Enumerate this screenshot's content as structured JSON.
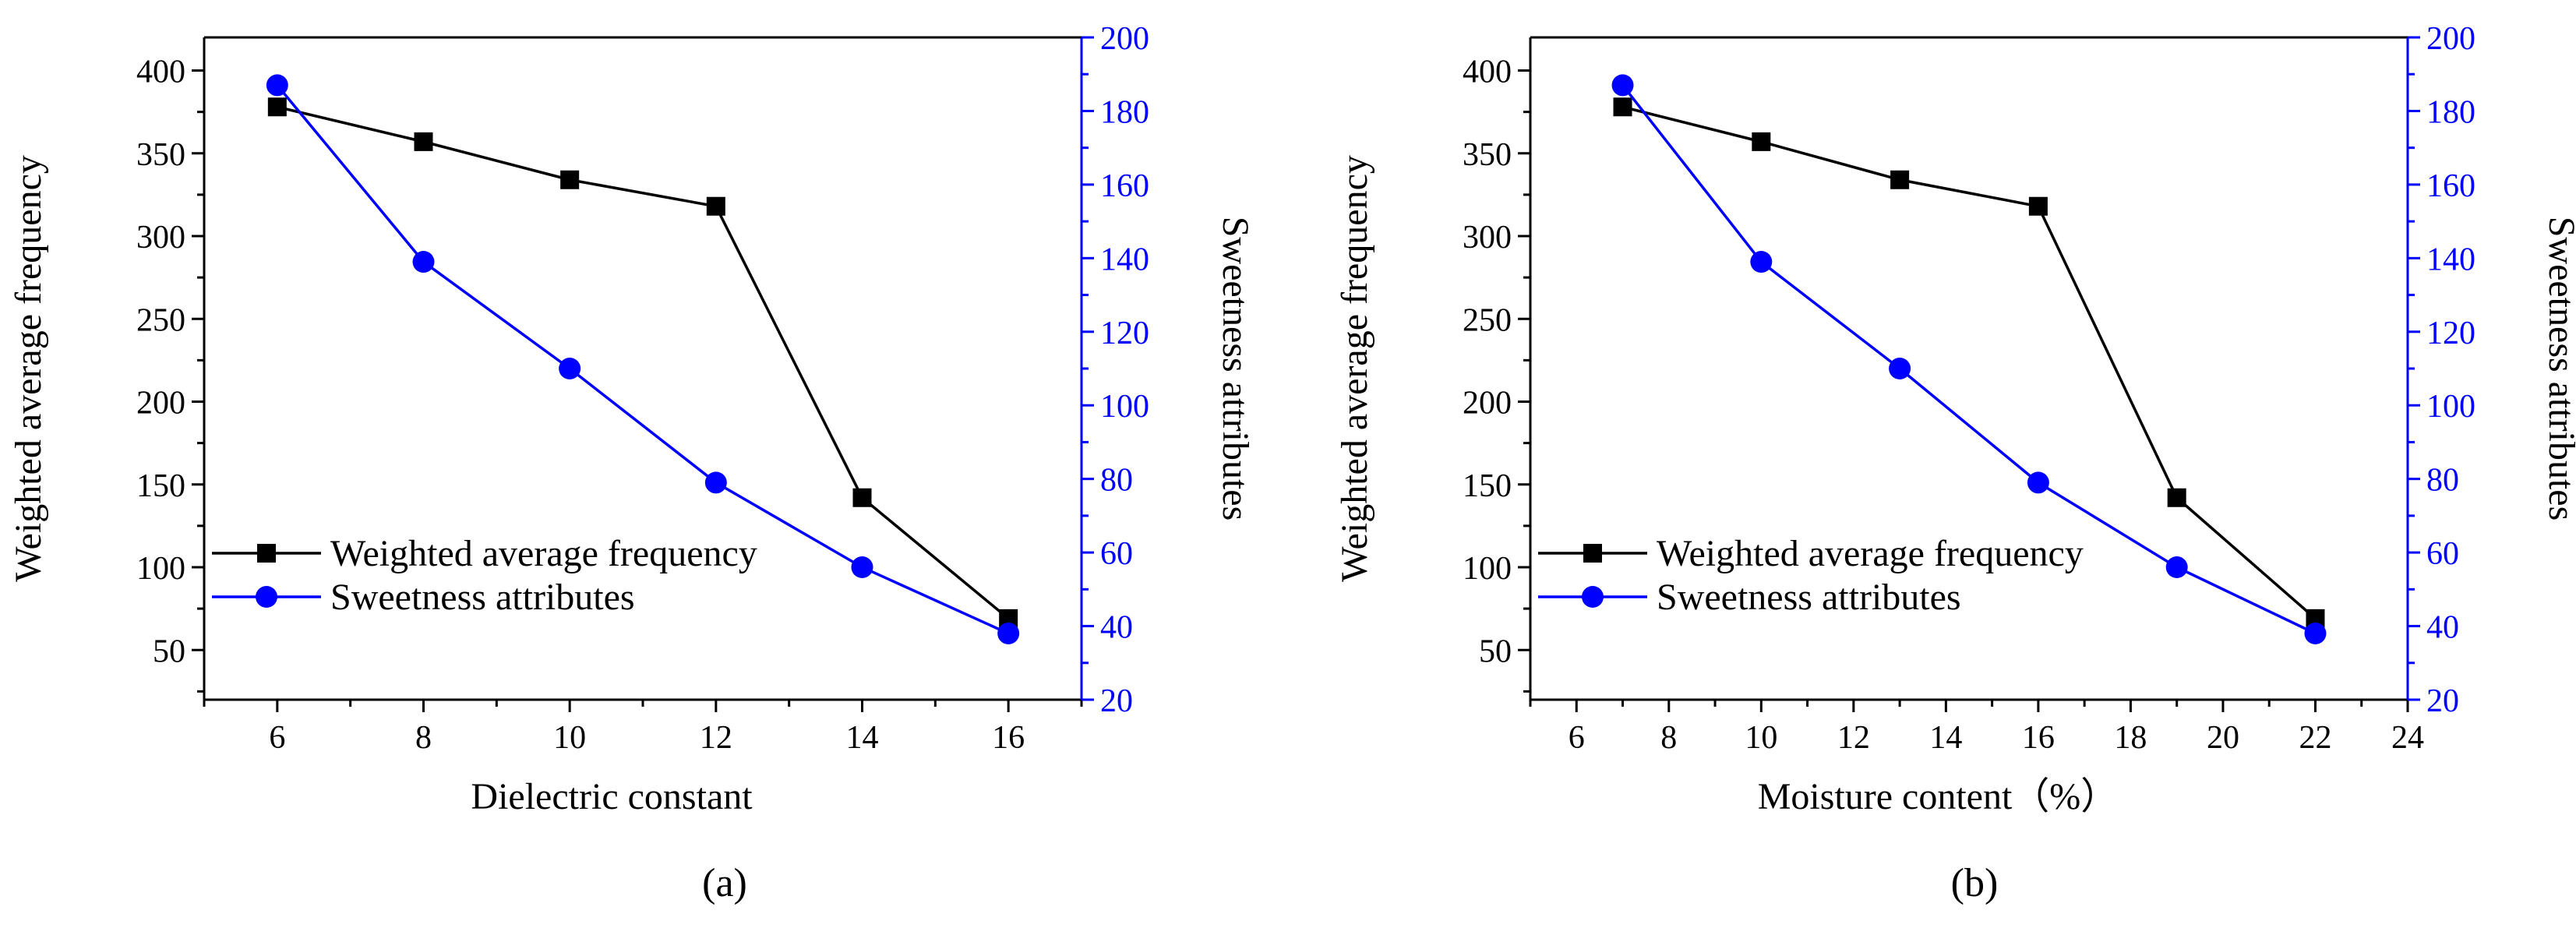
{
  "chart_data": [
    {
      "type": "line",
      "panel": "(a)",
      "xlabel": "Dielectric constant",
      "ylabel_left": "Weighted average frequency",
      "ylabel_right": "Sweetness attributes",
      "xlim": [
        5,
        17
      ],
      "xticks": [
        6,
        8,
        10,
        12,
        14,
        16
      ],
      "ylim_left": [
        20,
        420
      ],
      "yticks_left": [
        50,
        100,
        150,
        200,
        250,
        300,
        350,
        400
      ],
      "ylim_right": [
        20,
        200
      ],
      "yticks_right": [
        20,
        40,
        60,
        80,
        100,
        120,
        140,
        160,
        180,
        200
      ],
      "legend_position": "bottom-left",
      "series": [
        {
          "name": "Weighted average frequency",
          "axis": "left",
          "color": "#000000",
          "marker": "square",
          "x": [
            6,
            8,
            10,
            12,
            14,
            16
          ],
          "values": [
            378,
            357,
            334,
            318,
            142,
            69
          ]
        },
        {
          "name": "Sweetness attributes",
          "axis": "right",
          "color": "#0000ff",
          "marker": "circle",
          "x": [
            6,
            8,
            10,
            12,
            14,
            16
          ],
          "values": [
            187,
            139,
            110,
            79,
            56,
            38
          ]
        }
      ]
    },
    {
      "type": "line",
      "panel": "(b)",
      "xlabel": "Moisture content（%）",
      "ylabel_left": "Weighted average frequency",
      "ylabel_right": "Sweetness attributes",
      "xlim": [
        5,
        24
      ],
      "xticks": [
        6,
        8,
        10,
        12,
        14,
        16,
        18,
        20,
        22,
        24
      ],
      "ylim_left": [
        20,
        420
      ],
      "yticks_left": [
        50,
        100,
        150,
        200,
        250,
        300,
        350,
        400
      ],
      "ylim_right": [
        20,
        200
      ],
      "yticks_right": [
        20,
        40,
        60,
        80,
        100,
        120,
        140,
        160,
        180,
        200
      ],
      "legend_position": "bottom-left",
      "series": [
        {
          "name": "Weighted average frequency",
          "axis": "left",
          "color": "#000000",
          "marker": "square",
          "x": [
            7,
            10,
            13,
            16,
            19,
            22
          ],
          "values": [
            378,
            357,
            334,
            318,
            142,
            69
          ]
        },
        {
          "name": "Sweetness attributes",
          "axis": "right",
          "color": "#0000ff",
          "marker": "circle",
          "x": [
            7,
            10,
            13,
            16,
            19,
            22
          ],
          "values": [
            187,
            139,
            110,
            79,
            56,
            38
          ]
        }
      ]
    }
  ]
}
